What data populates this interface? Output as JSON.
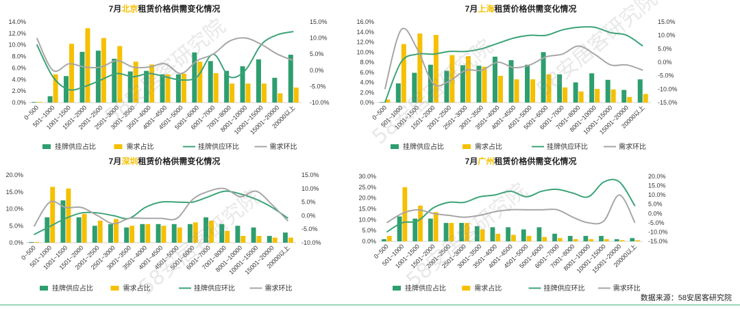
{
  "source": "数据来源：58安居客研究院",
  "watermark": "58安居客研究院",
  "colors": {
    "supply_bar": "#2e9e6f",
    "demand_bar": "#f5c000",
    "supply_line": "#3aa376",
    "demand_line": "#a6a6a6",
    "city": "#f5c000",
    "title": "#222222"
  },
  "legend": [
    "挂牌供应占比",
    "需求占比",
    "挂牌供应环比",
    "需求环比"
  ],
  "categories": [
    "0~500",
    "501~1000",
    "1001~1500",
    "1501~2000",
    "2001~2500",
    "2501~3000",
    "3001~3500",
    "3501~4000",
    "4001~4500",
    "4501~5000",
    "5001~6000",
    "6001~7000",
    "7001~8000",
    "8001~10000",
    "10001~15000",
    "15001~20000",
    "20000以上"
  ],
  "chart_data": [
    {
      "type": "bar",
      "title_prefix": "7月",
      "city": "北京",
      "title_suffix": "租赁价格供需变化情况",
      "ylim_left": [
        0,
        14
      ],
      "ylim_right": [
        -10,
        15
      ],
      "left_ticks": [
        "0.0%",
        "2.0%",
        "4.0%",
        "6.0%",
        "8.0%",
        "10.0%",
        "12.0%",
        "14.0%"
      ],
      "right_ticks": [
        "-10.0%",
        "-5.0%",
        "0.0%",
        "5.0%",
        "10.0%",
        "15.0%"
      ],
      "series": [
        {
          "name": "挂牌供应占比",
          "axis": "left",
          "values": [
            0.1,
            1.1,
            4.6,
            8.8,
            9.0,
            7.6,
            5.4,
            5.5,
            4.9,
            4.9,
            8.7,
            7.2,
            5.5,
            6.3,
            7.5,
            4.3,
            8.3
          ]
        },
        {
          "name": "需求占比",
          "axis": "left",
          "values": [
            0.1,
            4.9,
            10.2,
            12.9,
            11.2,
            9.8,
            7.1,
            6.6,
            4.9,
            5.0,
            7.1,
            5.1,
            3.3,
            3.3,
            3.3,
            1.6,
            2.6
          ]
        },
        {
          "name": "挂牌供应环比",
          "axis": "right",
          "values": [
            8,
            -2,
            -6,
            -5,
            -3,
            -1,
            -2,
            -1,
            -2,
            -3,
            -2,
            5,
            -2,
            0,
            8,
            11,
            12
          ]
        },
        {
          "name": "需求环比",
          "axis": "right",
          "values": [
            10,
            0,
            2,
            1,
            1,
            3,
            1,
            1,
            2,
            -1,
            3,
            5,
            9,
            10,
            8,
            5,
            3
          ]
        }
      ]
    },
    {
      "type": "bar",
      "title_prefix": "7月",
      "city": "上海",
      "title_suffix": "租赁价格供需变化情况",
      "ylim_left": [
        0,
        16
      ],
      "ylim_right": [
        -15,
        15
      ],
      "left_ticks": [
        "0.0%",
        "2.0%",
        "4.0%",
        "6.0%",
        "8.0%",
        "10.0%",
        "12.0%",
        "14.0%",
        "16.0%"
      ],
      "right_ticks": [
        "-15.0%",
        "-10.0%",
        "-5.0%",
        "0.0%",
        "5.0%",
        "10.0%",
        "15.0%"
      ],
      "series": [
        {
          "name": "挂牌供应占比",
          "axis": "left",
          "values": [
            0.1,
            3.8,
            5.9,
            7.5,
            6.3,
            7.4,
            7.3,
            9.1,
            8.4,
            7.5,
            10.0,
            5.6,
            4.0,
            5.8,
            4.5,
            2.5,
            4.6
          ]
        },
        {
          "name": "需求占比",
          "axis": "left",
          "values": [
            0.6,
            11.6,
            13.7,
            13.4,
            9.4,
            9.2,
            7.1,
            5.3,
            4.6,
            4.6,
            5.6,
            3.0,
            2.2,
            2.7,
            2.6,
            1.1,
            1.7
          ]
        },
        {
          "name": "挂牌供应环比",
          "axis": "right",
          "values": [
            -15,
            0,
            3,
            3,
            4,
            4,
            5,
            7,
            9,
            10,
            10,
            12,
            13,
            13,
            11,
            10,
            6
          ]
        },
        {
          "name": "需求环比",
          "axis": "right",
          "values": [
            -10,
            12,
            5,
            -8,
            -7,
            -3,
            -3,
            0,
            -2,
            -1,
            2,
            3,
            6,
            3,
            -1,
            -1,
            -3
          ]
        }
      ]
    },
    {
      "type": "bar",
      "title_prefix": "7月",
      "city": "深圳",
      "title_suffix": "租赁价格供需变化情况",
      "ylim_left": [
        0,
        20
      ],
      "ylim_right": [
        -10,
        15
      ],
      "left_ticks": [
        "0.0%",
        "5.0%",
        "10.0%",
        "15.0%",
        "20.0%"
      ],
      "right_ticks": [
        "-10.0%",
        "-5.0%",
        "0.0%",
        "5.0%",
        "10.0%",
        "15.0%"
      ],
      "series": [
        {
          "name": "挂牌供应占比",
          "axis": "left",
          "values": [
            0.2,
            7.5,
            12.5,
            7.5,
            5.0,
            5.5,
            4.5,
            5.5,
            5.5,
            5.5,
            5.5,
            7.5,
            5.5,
            5.0,
            4.5,
            2.0,
            3.0
          ]
        },
        {
          "name": "需求占比",
          "axis": "left",
          "values": [
            0.2,
            16.5,
            16.0,
            8.5,
            6.5,
            7.0,
            5.0,
            5.5,
            5.0,
            4.5,
            6.0,
            6.5,
            3.5,
            2.0,
            2.0,
            1.5,
            1.5
          ]
        },
        {
          "name": "挂牌供应环比",
          "axis": "right",
          "values": [
            -7,
            -4,
            -1,
            1,
            1,
            0,
            -1,
            3,
            5,
            5,
            5,
            7,
            9,
            8,
            6,
            3,
            -1
          ]
        },
        {
          "name": "需求环比",
          "axis": "right",
          "values": [
            -4,
            5,
            3,
            3,
            0,
            -3,
            -1,
            -1,
            -1,
            -1,
            6,
            9,
            10,
            7,
            9,
            4,
            -2
          ]
        }
      ]
    },
    {
      "type": "bar",
      "title_prefix": "7月",
      "city": "广州",
      "title_suffix": "租赁价格供需变化情况",
      "ylim_left": [
        0,
        30
      ],
      "ylim_right": [
        -15,
        20
      ],
      "left_ticks": [
        "0.0%",
        "5.0%",
        "10.0%",
        "15.0%",
        "20.0%",
        "25.0%",
        "30.0%"
      ],
      "right_ticks": [
        "-15.0%",
        "-10.0%",
        "-5.0%",
        "0.0%",
        "5.0%",
        "10.0%",
        "15.0%",
        "20.0%"
      ],
      "series": [
        {
          "name": "挂牌供应占比",
          "axis": "left",
          "values": [
            1.0,
            11.5,
            10.5,
            10.5,
            8.5,
            8.5,
            7.0,
            6.5,
            6.5,
            5.5,
            6.5,
            3.5,
            2.5,
            2.5,
            2.5,
            1.0,
            1.5
          ]
        },
        {
          "name": "需求占比",
          "axis": "left",
          "values": [
            2.5,
            25.0,
            16.5,
            13.5,
            8.5,
            8.5,
            5.5,
            3.5,
            3.0,
            2.5,
            2.0,
            1.5,
            1.0,
            1.0,
            1.0,
            0.5,
            0.5
          ]
        },
        {
          "name": "挂牌供应环比",
          "axis": "right",
          "values": [
            -10,
            -5,
            -4,
            3,
            6,
            6,
            9,
            10,
            12,
            9,
            12,
            13,
            11,
            9,
            17,
            17,
            4
          ]
        },
        {
          "name": "需求环比",
          "axis": "right",
          "values": [
            -5,
            0,
            2,
            0,
            -1,
            -2,
            -1,
            1,
            2,
            2,
            2,
            2,
            -2,
            -5,
            -4,
            10,
            -5
          ]
        }
      ]
    }
  ]
}
